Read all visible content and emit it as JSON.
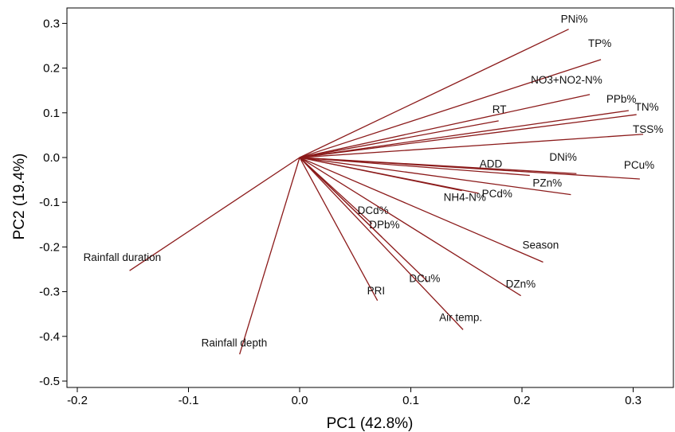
{
  "chart_data": {
    "type": "biplot",
    "xlabel": "PC1 (42.8%)",
    "ylabel": "PC2 (19.4%)",
    "xlim": [
      -0.22,
      0.34
    ],
    "ylim": [
      -0.52,
      0.33
    ],
    "xticks": [
      -0.2,
      -0.1,
      0.0,
      0.1,
      0.2,
      0.3
    ],
    "xtick_labels": [
      "-0.2",
      "-0.1",
      "0.0",
      "0.1",
      "0.2",
      "0.3"
    ],
    "yticks": [
      -0.5,
      -0.4,
      -0.3,
      -0.2,
      -0.1,
      0.0,
      0.1,
      0.2,
      0.3
    ],
    "ytick_labels": [
      "-0.5",
      "-0.4",
      "-0.3",
      "-0.2",
      "-0.1",
      "0.0",
      "0.1",
      "0.2",
      "0.3"
    ],
    "grid": false,
    "line_color": "#8b1a1a",
    "vectors": [
      {
        "label": "PNi%",
        "x": 0.242,
        "y": 0.287
      },
      {
        "label": "TP%",
        "x": 0.271,
        "y": 0.219
      },
      {
        "label": "NO3+NO2-N%",
        "x": 0.261,
        "y": 0.141
      },
      {
        "label": "RT",
        "x": 0.179,
        "y": 0.082
      },
      {
        "label": "PPb%",
        "x": 0.296,
        "y": 0.105
      },
      {
        "label": "TN%",
        "x": 0.303,
        "y": 0.096
      },
      {
        "label": "TSS%",
        "x": 0.309,
        "y": 0.052
      },
      {
        "label": "ADD",
        "x": 0.207,
        "y": -0.04
      },
      {
        "label": "DNi%",
        "x": 0.249,
        "y": -0.036
      },
      {
        "label": "PCu%",
        "x": 0.306,
        "y": -0.048
      },
      {
        "label": "PZn%",
        "x": 0.244,
        "y": -0.083
      },
      {
        "label": "PCd%",
        "x": 0.161,
        "y": -0.08
      },
      {
        "label": "NH4-N%",
        "x": 0.146,
        "y": -0.074
      },
      {
        "label": "DCd%",
        "x": 0.065,
        "y": -0.148
      },
      {
        "label": "DPb%",
        "x": 0.074,
        "y": -0.178
      },
      {
        "label": "Season",
        "x": 0.219,
        "y": -0.234
      },
      {
        "label": "DCu%",
        "x": 0.115,
        "y": -0.277
      },
      {
        "label": "DZn%",
        "x": 0.199,
        "y": -0.309
      },
      {
        "label": "PRI",
        "x": 0.07,
        "y": -0.32
      },
      {
        "label": "Air temp.",
        "x": 0.147,
        "y": -0.385
      },
      {
        "label": "Rainfall duration",
        "x": -0.153,
        "y": -0.253
      },
      {
        "label": "Rainfall depth",
        "x": -0.054,
        "y": -0.44
      }
    ]
  }
}
